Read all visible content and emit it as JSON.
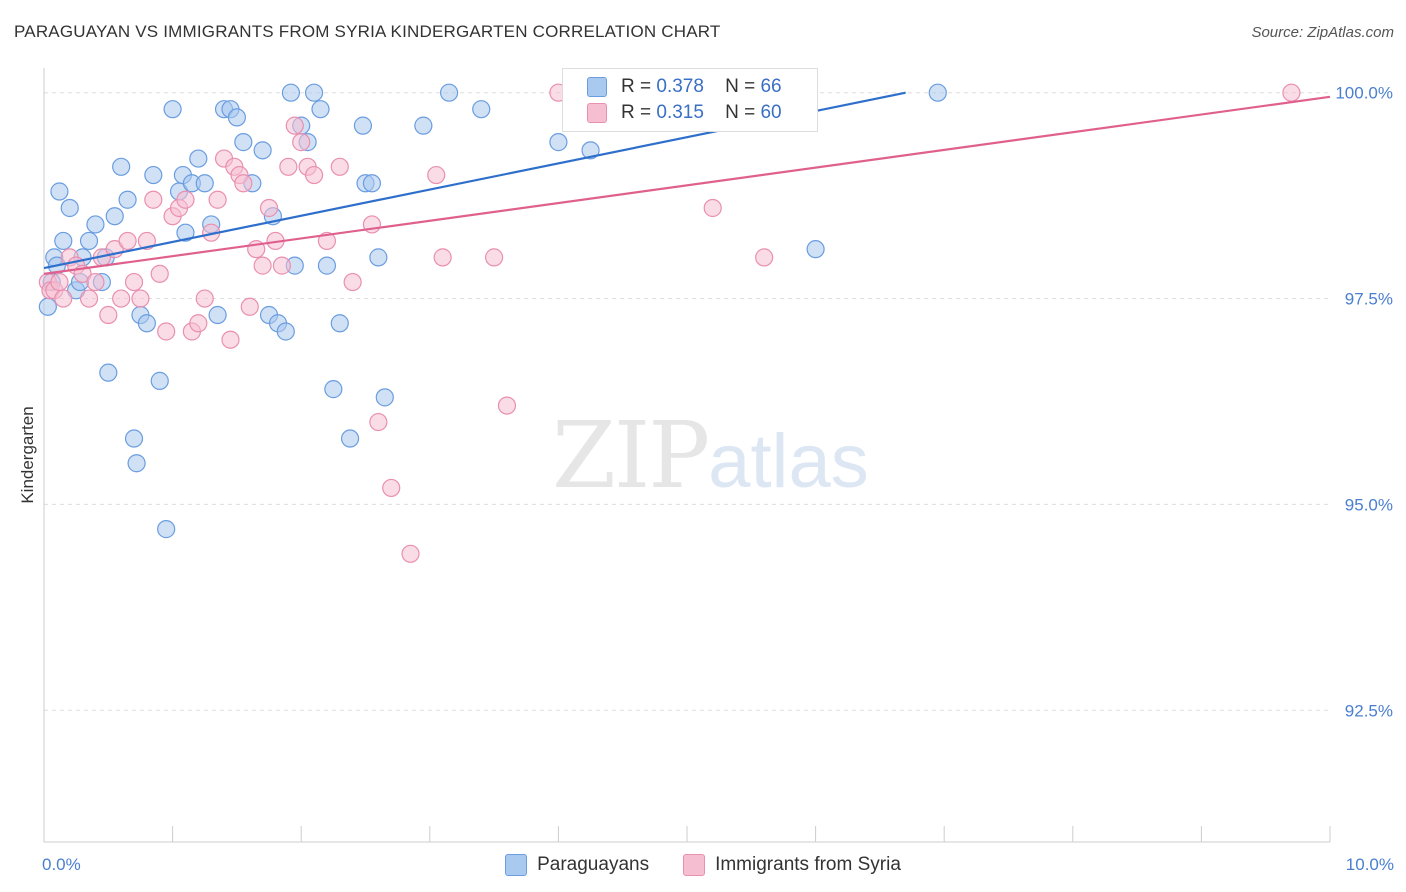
{
  "title": "PARAGUAYAN VS IMMIGRANTS FROM SYRIA KINDERGARTEN CORRELATION CHART",
  "source": "Source: ZipAtlas.com",
  "watermark": {
    "zip": "ZIP",
    "atlas": "atlas"
  },
  "colors": {
    "blue_fill": "#a9c9ef",
    "blue_stroke": "#6a9de0",
    "blue_line": "#2f6fcc",
    "pink_fill": "#f6bfd1",
    "pink_stroke": "#e98fb0",
    "pink_line": "#e0608d",
    "tick_label": "#4a7fd0",
    "grid": "#dddddd"
  },
  "legend": {
    "series1": {
      "r_label": "R =",
      "r_value": "0.378",
      "n_label": "N =",
      "n_value": "66"
    },
    "series2": {
      "r_label": "R =",
      "r_value": "0.315",
      "n_label": "N =",
      "n_value": "60"
    }
  },
  "chart_data": {
    "type": "scatter",
    "title": "PARAGUAYAN VS IMMIGRANTS FROM SYRIA KINDERGARTEN CORRELATION CHART",
    "xlabel": "",
    "ylabel": "Kindergarten",
    "xlim": [
      0,
      10
    ],
    "ylim": [
      90.9,
      100.3
    ],
    "x_tick_labels": [
      {
        "value": 0,
        "label": "0.0%"
      },
      {
        "value": 10,
        "label": "10.0%"
      }
    ],
    "y_tick_labels": [
      {
        "value": 100,
        "label": "100.0%"
      },
      {
        "value": 97.5,
        "label": "97.5%"
      },
      {
        "value": 95,
        "label": "95.0%"
      },
      {
        "value": 92.5,
        "label": "92.5%"
      }
    ],
    "series": [
      {
        "name": "Paraguayans",
        "color": "#a9c9ef",
        "trend": {
          "x": [
            0,
            6.7
          ],
          "y": [
            97.87,
            100.0
          ]
        },
        "points": [
          [
            0.03,
            97.4
          ],
          [
            0.06,
            97.7
          ],
          [
            0.08,
            98.0
          ],
          [
            0.1,
            97.9
          ],
          [
            0.12,
            98.8
          ],
          [
            0.15,
            98.2
          ],
          [
            0.2,
            98.6
          ],
          [
            0.25,
            97.6
          ],
          [
            0.28,
            97.7
          ],
          [
            0.3,
            98.0
          ],
          [
            0.35,
            98.2
          ],
          [
            0.4,
            98.4
          ],
          [
            0.45,
            97.7
          ],
          [
            0.48,
            98.0
          ],
          [
            0.5,
            96.6
          ],
          [
            0.55,
            98.5
          ],
          [
            0.6,
            99.1
          ],
          [
            0.65,
            98.7
          ],
          [
            0.7,
            95.8
          ],
          [
            0.72,
            95.5
          ],
          [
            0.75,
            97.3
          ],
          [
            0.8,
            97.2
          ],
          [
            0.85,
            99.0
          ],
          [
            0.9,
            96.5
          ],
          [
            0.95,
            94.7
          ],
          [
            1.0,
            99.8
          ],
          [
            1.05,
            98.8
          ],
          [
            1.08,
            99.0
          ],
          [
            1.1,
            98.3
          ],
          [
            1.15,
            98.9
          ],
          [
            1.2,
            99.2
          ],
          [
            1.25,
            98.9
          ],
          [
            1.3,
            98.4
          ],
          [
            1.35,
            97.3
          ],
          [
            1.4,
            99.8
          ],
          [
            1.45,
            99.8
          ],
          [
            1.5,
            99.7
          ],
          [
            1.55,
            99.4
          ],
          [
            1.62,
            98.9
          ],
          [
            1.7,
            99.3
          ],
          [
            1.75,
            97.3
          ],
          [
            1.78,
            98.5
          ],
          [
            1.82,
            97.2
          ],
          [
            1.88,
            97.1
          ],
          [
            1.92,
            100.0
          ],
          [
            1.95,
            97.9
          ],
          [
            2.0,
            99.6
          ],
          [
            2.05,
            99.4
          ],
          [
            2.1,
            100.0
          ],
          [
            2.15,
            99.8
          ],
          [
            2.2,
            97.9
          ],
          [
            2.25,
            96.4
          ],
          [
            2.3,
            97.2
          ],
          [
            2.38,
            95.8
          ],
          [
            2.48,
            99.6
          ],
          [
            2.5,
            98.9
          ],
          [
            2.55,
            98.9
          ],
          [
            2.6,
            98.0
          ],
          [
            2.65,
            96.3
          ],
          [
            2.95,
            99.6
          ],
          [
            3.15,
            100.0
          ],
          [
            3.4,
            99.8
          ],
          [
            4.0,
            99.4
          ],
          [
            4.25,
            99.3
          ],
          [
            6.0,
            98.1
          ],
          [
            6.95,
            100.0
          ]
        ]
      },
      {
        "name": "Immigrants from Syria",
        "color": "#f6bfd1",
        "trend": {
          "x": [
            0,
            10
          ],
          "y": [
            97.8,
            99.95
          ]
        },
        "points": [
          [
            0.03,
            97.7
          ],
          [
            0.05,
            97.6
          ],
          [
            0.08,
            97.6
          ],
          [
            0.12,
            97.7
          ],
          [
            0.15,
            97.5
          ],
          [
            0.2,
            98.0
          ],
          [
            0.25,
            97.9
          ],
          [
            0.3,
            97.8
          ],
          [
            0.35,
            97.5
          ],
          [
            0.4,
            97.7
          ],
          [
            0.45,
            98.0
          ],
          [
            0.5,
            97.3
          ],
          [
            0.55,
            98.1
          ],
          [
            0.6,
            97.5
          ],
          [
            0.65,
            98.2
          ],
          [
            0.7,
            97.7
          ],
          [
            0.75,
            97.5
          ],
          [
            0.8,
            98.2
          ],
          [
            0.85,
            98.7
          ],
          [
            0.9,
            97.8
          ],
          [
            0.95,
            97.1
          ],
          [
            1.0,
            98.5
          ],
          [
            1.05,
            98.6
          ],
          [
            1.1,
            98.7
          ],
          [
            1.15,
            97.1
          ],
          [
            1.2,
            97.2
          ],
          [
            1.25,
            97.5
          ],
          [
            1.3,
            98.3
          ],
          [
            1.35,
            98.7
          ],
          [
            1.4,
            99.2
          ],
          [
            1.45,
            97.0
          ],
          [
            1.48,
            99.1
          ],
          [
            1.52,
            99.0
          ],
          [
            1.55,
            98.9
          ],
          [
            1.6,
            97.4
          ],
          [
            1.65,
            98.1
          ],
          [
            1.7,
            97.9
          ],
          [
            1.75,
            98.6
          ],
          [
            1.8,
            98.2
          ],
          [
            1.85,
            97.9
          ],
          [
            1.9,
            99.1
          ],
          [
            1.95,
            99.6
          ],
          [
            2.0,
            99.4
          ],
          [
            2.05,
            99.1
          ],
          [
            2.1,
            99.0
          ],
          [
            2.2,
            98.2
          ],
          [
            2.3,
            99.1
          ],
          [
            2.4,
            97.7
          ],
          [
            2.55,
            98.4
          ],
          [
            2.6,
            96.0
          ],
          [
            2.7,
            95.2
          ],
          [
            2.85,
            94.4
          ],
          [
            3.05,
            99.0
          ],
          [
            3.1,
            98.0
          ],
          [
            3.5,
            98.0
          ],
          [
            3.6,
            96.2
          ],
          [
            4.0,
            100.0
          ],
          [
            5.2,
            98.6
          ],
          [
            5.6,
            98.0
          ],
          [
            9.7,
            100.0
          ]
        ]
      }
    ]
  },
  "bottom_legend": [
    "Paraguayans",
    "Immigrants from Syria"
  ]
}
